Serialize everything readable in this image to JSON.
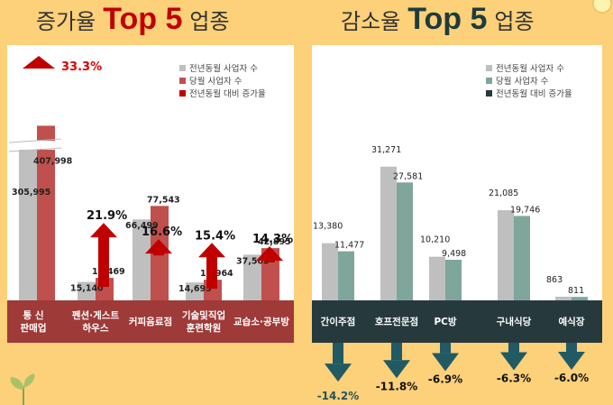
{
  "colors": {
    "background": "#FDD07A",
    "prev_bar": "#BFBFBF",
    "inc_bar": "#C0504D",
    "inc_arrow": "#C00000",
    "inc_footer": "#9E3A38",
    "dec_bar": "#7FA69B",
    "dec_arrow": "#215A63",
    "dec_footer": "#263A3D"
  },
  "titles": {
    "left": {
      "pre": "증가율",
      "big": "Top 5",
      "suf": "업종"
    },
    "right": {
      "pre": "감소율",
      "big": "Top 5",
      "suf": "업종"
    }
  },
  "chart_data": [
    {
      "type": "bar",
      "categories": [
        "통 신\n판매업",
        "펜션·게스트\n하우스",
        "커피음료점",
        "기술및직업\n훈련학원",
        "교습소·공부방"
      ],
      "series": [
        {
          "name": "전년동월 사업자 수",
          "values": [
            305995,
            15140,
            66499,
            14693,
            37505
          ]
        },
        {
          "name": "당월 사업자 수",
          "values": [
            407998,
            18469,
            77543,
            16964,
            42895
          ]
        },
        {
          "name": "전년동월 대비 증가율",
          "values": [
            33.3,
            21.9,
            16.6,
            15.4,
            14.3
          ]
        }
      ],
      "value_labels_prev": [
        "305,995",
        "15,140",
        "66,499",
        "14,693",
        "37,505"
      ],
      "value_labels_curr": [
        "407,998",
        "18,469",
        "77,543",
        "16,964",
        "42,895"
      ],
      "rate_labels": [
        "33.3%",
        "21.9%",
        "16.6%",
        "15.4%",
        "14.3%"
      ],
      "axis_break": true
    },
    {
      "type": "bar",
      "categories": [
        "간이주점",
        "호프전문점",
        "PC방",
        "구내식당",
        "예식장"
      ],
      "series": [
        {
          "name": "전년동월 사업자 수",
          "values": [
            13380,
            31271,
            10210,
            21085,
            863
          ]
        },
        {
          "name": "당월 사업자 수",
          "values": [
            11477,
            27581,
            9498,
            19746,
            811
          ]
        },
        {
          "name": "전년동월 대비 증가율",
          "values": [
            -14.2,
            -11.8,
            -6.9,
            -6.3,
            -6.0
          ]
        }
      ],
      "value_labels_prev": [
        "13,380",
        "31,271",
        "10,210",
        "21,085",
        "863"
      ],
      "value_labels_curr": [
        "11,477",
        "27,581",
        "9,498",
        "19,746",
        "811"
      ],
      "rate_labels": [
        "-14.2%",
        "-11.8%",
        "-6.9%",
        "-6.3%",
        "-6.0%"
      ]
    }
  ]
}
